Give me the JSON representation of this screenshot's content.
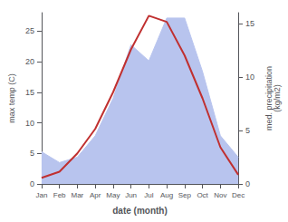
{
  "chart_data": {
    "type": "line",
    "xlabel": "date (month)",
    "ylabel": "max temp (C)",
    "y2label": "med. precipitation\n(kg/m2)",
    "categories": [
      "Jan",
      "Feb",
      "Mar",
      "Apr",
      "May",
      "Jun",
      "Jul",
      "Aug",
      "Sep",
      "Oct",
      "Nov",
      "Dec"
    ],
    "series": [
      {
        "type": "area",
        "axis": "y2",
        "color": "#b8c4ee",
        "values": [
          3.0,
          2.0,
          2.5,
          4.5,
          8.0,
          13.0,
          11.5,
          15.5,
          15.5,
          10.5,
          4.5,
          2.5
        ]
      },
      {
        "type": "line",
        "color": "#c03030",
        "values": [
          1.0,
          2.0,
          5.0,
          9.0,
          15.0,
          22.0,
          27.5,
          26.5,
          21.0,
          14.0,
          6.0,
          1.5
        ]
      }
    ],
    "ylim": [
      0,
      28
    ],
    "yticks": [
      0,
      5,
      10,
      15,
      20,
      25
    ],
    "y2lim": [
      0,
      16
    ],
    "y2ticks": [
      0,
      5,
      10,
      15
    ],
    "grid": false
  }
}
